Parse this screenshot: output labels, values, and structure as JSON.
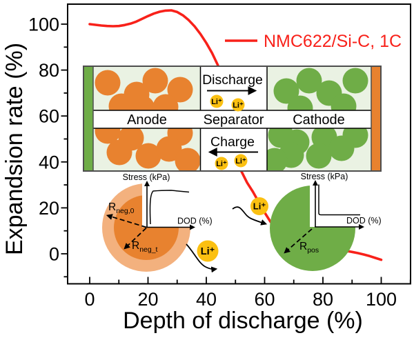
{
  "chart_data": {
    "type": "line",
    "title": "",
    "xlabel": "Depth of discharge (%)",
    "ylabel": "Expandsion rate (%)",
    "x_ticks": [
      0,
      20,
      40,
      60,
      80,
      100
    ],
    "x_minor_ticks": [
      10,
      30,
      50,
      70,
      90,
      110
    ],
    "y_ticks": [
      0,
      20,
      40,
      60,
      80,
      100
    ],
    "y_minor_ticks": [
      -10,
      10,
      30,
      50,
      70,
      90
    ],
    "xlim": [
      -8,
      110.5
    ],
    "ylim": [
      -13.4,
      109
    ],
    "grid": false,
    "legend": {
      "label": "NMC622/Si-C, 1C",
      "position": "top-right",
      "color": "#f8211a"
    },
    "series": [
      {
        "name": "NMC622/Si-C, 1C",
        "color": "#f8211a",
        "points": [
          [
            0,
            100
          ],
          [
            2,
            99.7
          ],
          [
            4,
            99.4
          ],
          [
            6,
            99.2
          ],
          [
            8,
            99.1
          ],
          [
            10,
            99.2
          ],
          [
            12,
            99.6
          ],
          [
            14,
            100.2
          ],
          [
            16,
            101.1
          ],
          [
            18,
            102.3
          ],
          [
            20,
            103.5
          ],
          [
            22,
            104.6
          ],
          [
            24,
            105.4
          ],
          [
            26,
            105.9
          ],
          [
            28,
            106
          ],
          [
            30,
            105.3
          ],
          [
            32,
            103.8
          ],
          [
            34,
            101.7
          ],
          [
            36,
            99
          ],
          [
            38,
            95.7
          ],
          [
            40,
            91.8
          ],
          [
            42,
            87.4
          ],
          [
            44,
            82
          ],
          [
            46,
            74
          ],
          [
            48,
            62
          ],
          [
            50,
            49
          ],
          [
            52,
            36
          ],
          [
            54,
            31
          ],
          [
            56,
            27
          ],
          [
            58,
            22.5
          ],
          [
            60,
            18
          ],
          [
            62,
            14
          ],
          [
            64,
            11.5
          ],
          [
            66,
            9.8
          ],
          [
            68,
            8.4
          ],
          [
            70,
            7.2
          ],
          [
            72,
            6.2
          ],
          [
            74,
            5.3
          ],
          [
            76,
            4.5
          ],
          [
            78,
            3.8
          ],
          [
            80,
            3.2
          ],
          [
            82,
            2.6
          ],
          [
            84,
            2.1
          ],
          [
            86,
            1.6
          ],
          [
            88,
            1.2
          ],
          [
            90,
            0.8
          ],
          [
            92,
            0.3
          ],
          [
            94,
            -0.3
          ],
          [
            96,
            -1
          ],
          [
            98,
            -1.8
          ],
          [
            100,
            -2.6
          ]
        ]
      }
    ]
  },
  "battery_inset": {
    "anode_label": "Anode",
    "separator_label": "Separator",
    "cathode_label": "Cathode",
    "discharge_label": "Discharge",
    "charge_label": "Charge",
    "li_ion_label": "Li⁺",
    "colors": {
      "anode_particle": "#e8822f",
      "cathode_particle": "#6fad47",
      "electrolyte_background": "#eaf2e3",
      "left_current_collector": "#6fad47",
      "right_current_collector": "#e8822f",
      "li_ion": "#fbc011",
      "border": "#4d4d4d"
    }
  },
  "anode_particle_inset": {
    "stress_axis_label": "Stress (kPa)",
    "dod_axis_label": "DOD (%)",
    "radius_initial": {
      "base": "R",
      "sub": "neg,0"
    },
    "radius_time": {
      "base": "R",
      "sub": "neg_t"
    },
    "li_ion_label": "Li⁺",
    "colors": {
      "outer_shell": "#f3b17e",
      "core": "#e8822f"
    }
  },
  "cathode_particle_inset": {
    "stress_axis_label": "Stress (kPa)",
    "dod_axis_label": "DOD (%)",
    "radius": {
      "base": "R",
      "sub": "pos"
    },
    "li_ion_label": "Li⁺",
    "colors": {
      "particle": "#6fad47"
    }
  }
}
